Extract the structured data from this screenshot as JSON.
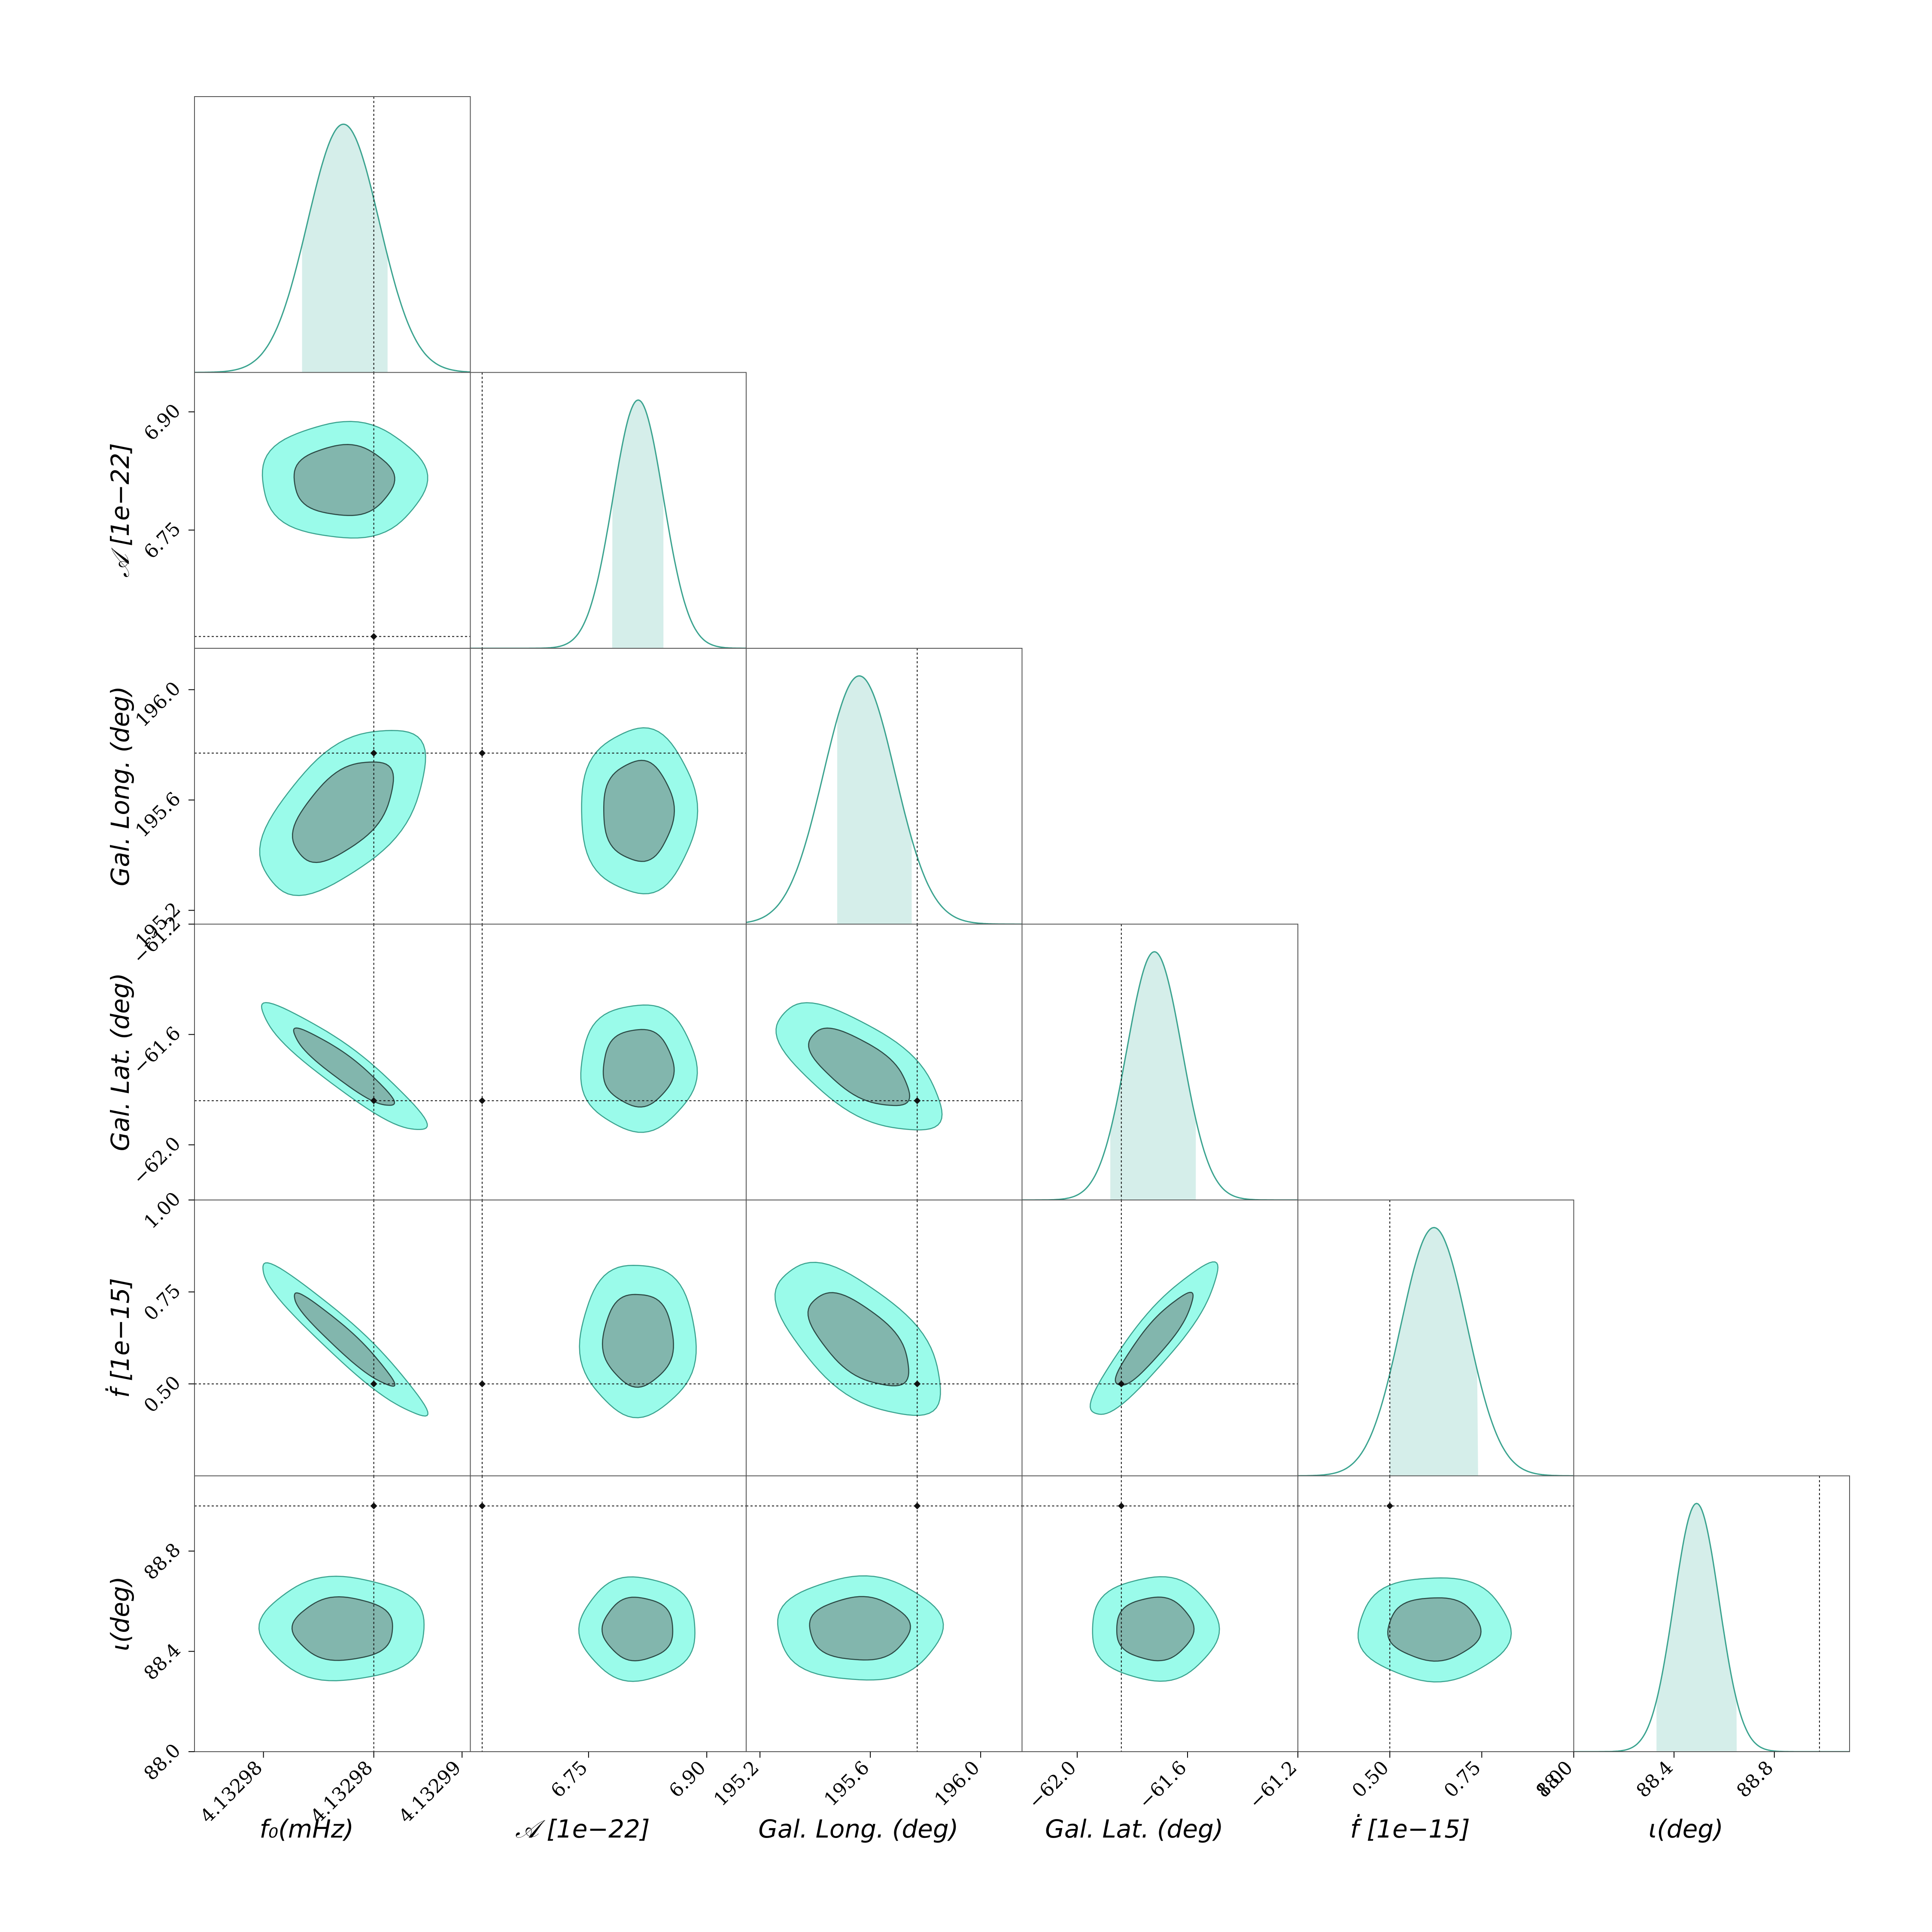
{
  "chart_data": {
    "type": "corner",
    "parameters": [
      {
        "key": "f0",
        "label": "f_0(mHz)",
        "ticks": [
          "4.13298",
          "4.13298",
          "4.13299"
        ],
        "tick_values": [
          0.25,
          0.65,
          0.97
        ],
        "truth": 0.65,
        "mean": 0.54,
        "sd": 0.13,
        "band": [
          0.39,
          0.7
        ]
      },
      {
        "key": "amp",
        "label": "𝒜 [1e−22]",
        "ticks": [
          "6.75",
          "6.90"
        ],
        "tick_values": [
          6.75,
          6.9
        ],
        "range": [
          6.6,
          6.95
        ],
        "truth": 6.615,
        "mean": 6.813,
        "sd": 0.032,
        "band": [
          6.78,
          6.845
        ]
      },
      {
        "key": "lon",
        "label": "Gal. Long. (deg)",
        "ticks": [
          "195.2",
          "195.6",
          "196.0"
        ],
        "tick_values": [
          195.2,
          195.6,
          196.0
        ],
        "range": [
          195.15,
          196.15
        ],
        "truth": 195.77,
        "mean": 195.56,
        "sd": 0.13,
        "band": [
          195.48,
          195.75
        ]
      },
      {
        "key": "lat",
        "label": "Gal. Lat. (deg)",
        "ticks": [
          "−62.0",
          "−61.6",
          "−61.2"
        ],
        "tick_values": [
          -62.0,
          -61.6,
          -61.2
        ],
        "range": [
          -62.2,
          -61.2
        ],
        "truth": -61.84,
        "mean": -61.72,
        "sd": 0.1,
        "band": [
          -61.88,
          -61.57
        ]
      },
      {
        "key": "fdot",
        "label": "ḟ [1e−15]",
        "ticks": [
          "0.50",
          "0.75",
          "1.00"
        ],
        "tick_values": [
          0.5,
          0.75,
          1.0
        ],
        "range": [
          0.25,
          1.0
        ],
        "truth": 0.5,
        "mean": 0.62,
        "sd": 0.09,
        "band": [
          0.5,
          0.74
        ]
      },
      {
        "key": "iota",
        "label": "ι(deg)",
        "ticks": [
          "88.0",
          "88.4",
          "88.8"
        ],
        "tick_values": [
          88.0,
          88.4,
          88.8
        ],
        "range": [
          88.0,
          89.1
        ],
        "truth": 88.98,
        "mean": 88.49,
        "sd": 0.09,
        "band": [
          88.33,
          88.65
        ]
      }
    ],
    "correlations": [
      [
        1,
        0
      ],
      [
        0,
        1
      ],
      [
        0.55,
        0,
        1
      ],
      [
        -0.92,
        0,
        -0.65,
        1
      ],
      [
        -0.95,
        0,
        -0.6,
        0.9,
        1
      ],
      [
        0,
        0,
        0,
        0,
        0,
        1
      ]
    ],
    "credible_levels": [
      "1-sigma",
      "2-sigma"
    ],
    "colors": {
      "inner": "#82b6ad",
      "outer": "#9afbea",
      "line": "#3aa38f",
      "band": "#d5eeea",
      "truth": "#111111"
    }
  },
  "y_axis_labels": [
    "𝒜 [1e−22]",
    "Gal. Long. (deg)",
    "Gal. Lat. (deg)",
    "ḟ [1e−15]",
    "ι(deg)"
  ],
  "x_axis_labels": [
    "f₀(mHz)",
    "𝒜 [1e−22]",
    "Gal. Long. (deg)",
    "Gal. Lat. (deg)",
    "ḟ [1e−15]",
    "ι(deg)"
  ]
}
